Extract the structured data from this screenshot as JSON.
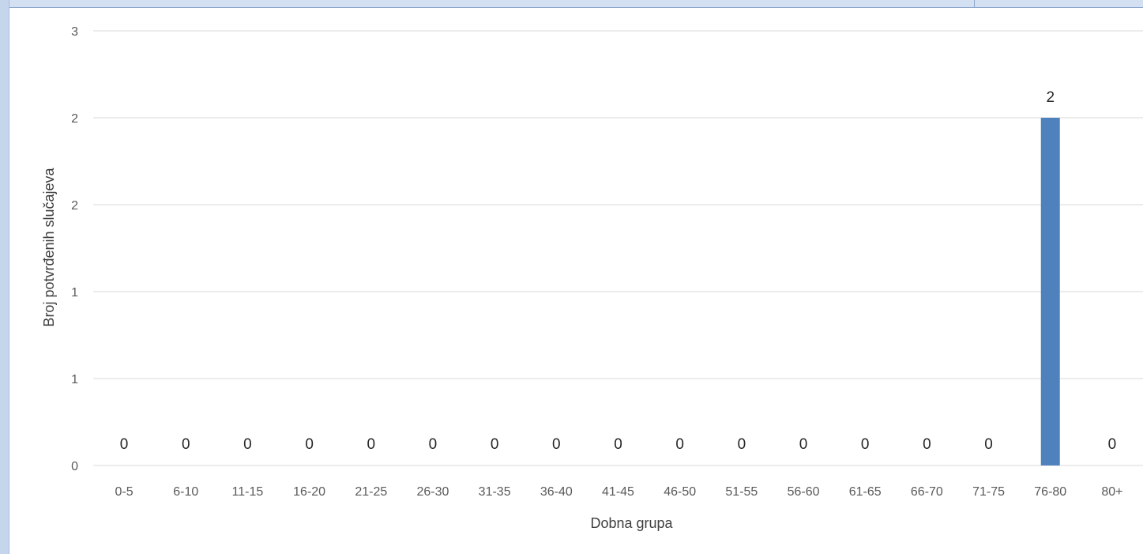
{
  "chart_data": {
    "type": "bar",
    "title": "",
    "xlabel": "Dobna grupa",
    "ylabel": "Broj potvrđenih slučajeva",
    "categories": [
      "0-5",
      "6-10",
      "11-15",
      "16-20",
      "21-25",
      "26-30",
      "31-35",
      "36-40",
      "41-45",
      "46-50",
      "51-55",
      "56-60",
      "61-65",
      "66-70",
      "71-75",
      "76-80",
      "80+"
    ],
    "values": [
      0,
      0,
      0,
      0,
      0,
      0,
      0,
      0,
      0,
      0,
      0,
      0,
      0,
      0,
      0,
      2,
      0
    ],
    "data_labels": [
      "0",
      "0",
      "0",
      "0",
      "0",
      "0",
      "0",
      "0",
      "0",
      "0",
      "0",
      "0",
      "0",
      "0",
      "0",
      "2",
      "0"
    ],
    "ylim": [
      0,
      2.5
    ],
    "yticks": [
      0,
      0.5,
      1,
      1.5,
      2,
      2.5
    ],
    "ytick_labels": [
      "0",
      "1",
      "1",
      "2",
      "2",
      "3"
    ],
    "grid": true,
    "legend": "none",
    "bar_color": "#4f81bd",
    "grid_color": "#d9d9d9"
  }
}
